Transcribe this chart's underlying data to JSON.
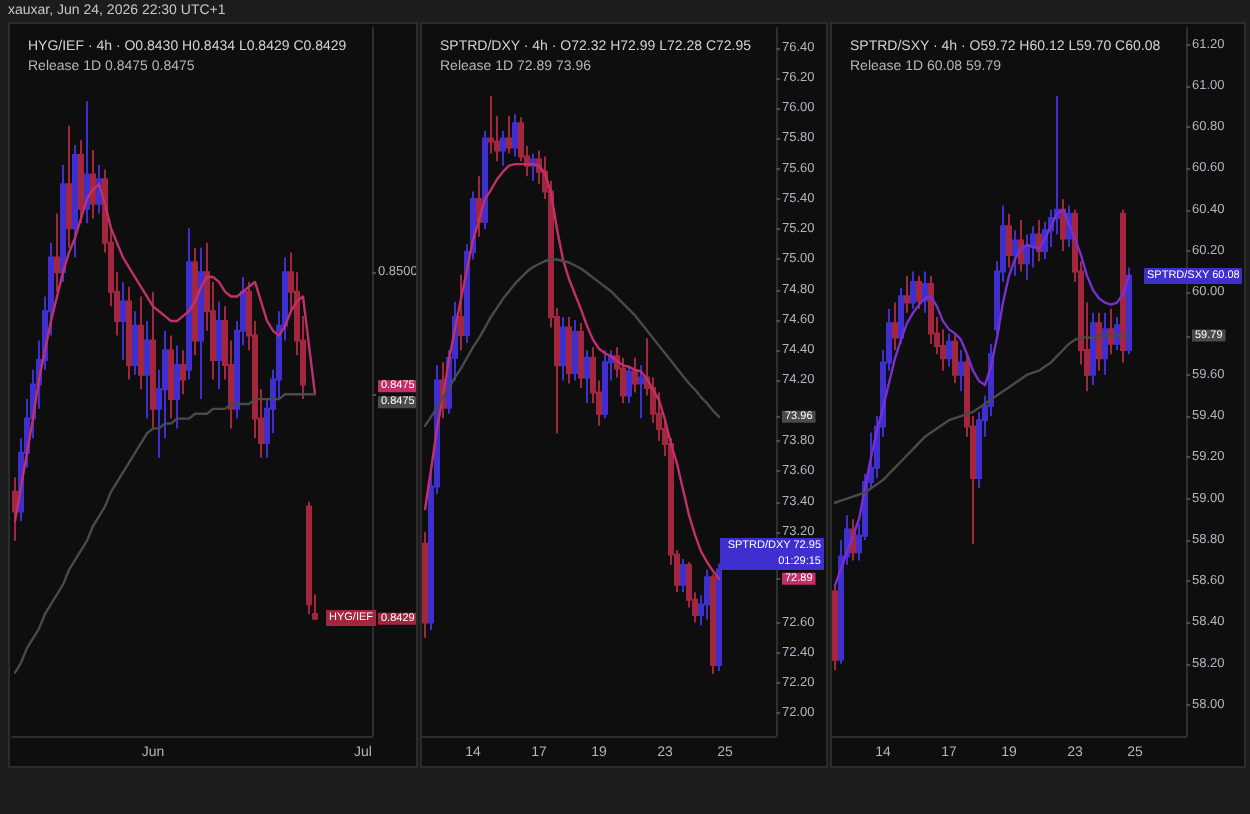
{
  "chart_data": [
    {
      "type": "candlestick",
      "title": "HYG/IEF · 4h · O0.8430 H0.8434 L0.8429 C0.8429",
      "subtitle": "Release 1D 0.8475 0.8475",
      "categories": [
        null,
        null,
        null,
        null,
        null,
        null,
        null,
        null,
        null,
        null,
        null,
        null,
        null,
        null,
        null,
        null,
        null,
        null,
        null,
        null,
        null,
        null,
        null,
        "Jun",
        null,
        null,
        null,
        null,
        null,
        null,
        null,
        null,
        null,
        null,
        null,
        null,
        null,
        null,
        null,
        null,
        null,
        null,
        null,
        null,
        null,
        null,
        null,
        null,
        null,
        null,
        null,
        null,
        null,
        null,
        null,
        null,
        null,
        null,
        "Jul",
        null
      ],
      "ohlc": [
        [
          0.8455,
          0.8458,
          0.8445,
          0.8451
        ],
        [
          0.8451,
          0.8466,
          0.8449,
          0.8463
        ],
        [
          0.8463,
          0.8474,
          0.846,
          0.847
        ],
        [
          0.847,
          0.848,
          0.8466,
          0.8477
        ],
        [
          0.8477,
          0.8486,
          0.8472,
          0.8482
        ],
        [
          0.8482,
          0.8495,
          0.848,
          0.8492
        ],
        [
          0.8492,
          0.8506,
          0.8487,
          0.8503
        ],
        [
          0.8503,
          0.8512,
          0.8496,
          0.85
        ],
        [
          0.85,
          0.8522,
          0.8498,
          0.8518
        ],
        [
          0.8518,
          0.853,
          0.8505,
          0.8509
        ],
        [
          0.8509,
          0.8526,
          0.8503,
          0.8524
        ],
        [
          0.8524,
          0.8527,
          0.851,
          0.8513
        ],
        [
          0.8513,
          0.8535,
          0.851,
          0.852
        ],
        [
          0.852,
          0.8525,
          0.8511,
          0.8514
        ],
        [
          0.8514,
          0.8522,
          0.8512,
          0.8519
        ],
        [
          0.8519,
          0.8521,
          0.8504,
          0.8506
        ],
        [
          0.8506,
          0.8509,
          0.8493,
          0.8496
        ],
        [
          0.8496,
          0.85,
          0.8487,
          0.849
        ],
        [
          0.849,
          0.8498,
          0.8482,
          0.8494
        ],
        [
          0.8494,
          0.8497,
          0.8478,
          0.8481
        ],
        [
          0.8481,
          0.8492,
          0.8479,
          0.8489
        ],
        [
          0.8489,
          0.8495,
          0.8476,
          0.8479
        ],
        [
          0.8479,
          0.849,
          0.847,
          0.8486
        ],
        [
          0.8486,
          0.8496,
          0.8468,
          0.8472
        ],
        [
          0.8472,
          0.848,
          0.8462,
          0.8476
        ],
        [
          0.8476,
          0.8488,
          0.8466,
          0.8484
        ],
        [
          0.8484,
          0.8487,
          0.847,
          0.8474
        ],
        [
          0.8474,
          0.8485,
          0.8468,
          0.8481
        ],
        [
          0.8481,
          0.8484,
          0.8475,
          0.8478
        ],
        [
          0.848,
          0.8509,
          0.8478,
          0.8502
        ],
        [
          0.8502,
          0.8505,
          0.8483,
          0.8486
        ],
        [
          0.8486,
          0.8505,
          0.8474,
          0.85
        ],
        [
          0.85,
          0.8506,
          0.8488,
          0.8492
        ],
        [
          0.8492,
          0.8498,
          0.8478,
          0.8482
        ],
        [
          0.8482,
          0.8494,
          0.8476,
          0.849
        ],
        [
          0.849,
          0.8493,
          0.8478,
          0.8481
        ],
        [
          0.8481,
          0.8486,
          0.8468,
          0.8472
        ],
        [
          0.8472,
          0.849,
          0.847,
          0.8488
        ],
        [
          0.8488,
          0.8499,
          0.8485,
          0.8496
        ],
        [
          0.8496,
          0.8498,
          0.8484,
          0.8487
        ],
        [
          0.8487,
          0.849,
          0.8466,
          0.847
        ],
        [
          0.847,
          0.8476,
          0.8462,
          0.8465
        ],
        [
          0.8465,
          0.8474,
          0.8462,
          0.8472
        ],
        [
          0.8472,
          0.848,
          0.8467,
          0.8478
        ],
        [
          0.8478,
          0.8492,
          0.8474,
          0.8489
        ],
        [
          0.8489,
          0.8503,
          0.8486,
          0.85
        ],
        [
          0.85,
          0.8504,
          0.8492,
          0.8496
        ],
        [
          0.8496,
          0.85,
          0.8483,
          0.8486
        ],
        [
          0.8486,
          0.8491,
          0.8474,
          0.8477
        ],
        [
          0.8452,
          0.8453,
          0.843,
          0.8432
        ],
        [
          0.843,
          0.8434,
          0.8429,
          0.8429
        ],
        null,
        null,
        null,
        null,
        null,
        null,
        null,
        null,
        null
      ],
      "colors": [
        "#a3263f",
        "#3f2fcf",
        "#3f2fcf",
        "#3f2fcf",
        "#3f2fcf",
        "#3f2fcf",
        "#3f2fcf",
        "#a3263f",
        "#3f2fcf",
        "#a3263f",
        "#3f2fcf",
        "#a3263f",
        "#3f2fcf",
        "#a3263f",
        "#3f2fcf",
        "#a3263f",
        "#a3263f",
        "#a3263f",
        "#3f2fcf",
        "#a3263f",
        "#3f2fcf",
        "#a3263f",
        "#3f2fcf",
        "#a3263f",
        "#3f2fcf",
        "#3f2fcf",
        "#a3263f",
        "#3f2fcf",
        "#a3263f",
        "#3f2fcf",
        "#a3263f",
        "#3f2fcf",
        "#a3263f",
        "#a3263f",
        "#3f2fcf",
        "#a3263f",
        "#a3263f",
        "#3f2fcf",
        "#3f2fcf",
        "#a3263f",
        "#a3263f",
        "#a3263f",
        "#3f2fcf",
        "#3f2fcf",
        "#3f2fcf",
        "#3f2fcf",
        "#a3263f",
        "#a3263f",
        "#a3263f",
        "#a3263f",
        "#a3263f",
        null,
        null,
        null,
        null,
        null,
        null,
        null,
        null,
        null
      ],
      "value_labels": [
        null,
        null,
        null,
        null,
        null,
        null,
        null,
        null,
        null,
        null,
        null,
        null,
        null,
        null,
        null,
        null,
        null,
        null,
        null,
        null,
        null,
        null,
        null,
        null,
        null,
        null,
        null,
        null,
        null,
        null,
        null,
        null,
        null,
        null,
        null,
        null,
        null,
        null,
        null,
        null,
        null,
        null,
        null,
        null,
        null,
        null,
        null,
        null,
        null,
        null,
        "HYG/IEF",
        null,
        null,
        null,
        null,
        null,
        null,
        null,
        null,
        null
      ],
      "series": [
        {
          "type": "line",
          "color": "#c2306a",
          "values": [
            0.8449,
            0.8456,
            0.8463,
            0.847,
            0.8478,
            0.8484,
            0.849,
            0.8495,
            0.85,
            0.8504,
            0.8507,
            0.8511,
            0.8515,
            0.8517,
            0.8518,
            0.8514,
            0.8509,
            0.8506,
            0.8503,
            0.8501,
            0.8499,
            0.8497,
            0.8495,
            0.8493,
            0.8492,
            0.8491,
            0.849,
            0.849,
            0.8491,
            0.8492,
            0.8494,
            0.8497,
            0.8499,
            0.8499,
            0.8498,
            0.8496,
            0.8495,
            0.8495,
            0.8496,
            0.8497,
            0.8498,
            0.8494,
            0.849,
            0.8488,
            0.8487,
            0.8489,
            0.8492,
            0.8494,
            0.8495,
            0.8485,
            0.8475,
            null,
            null,
            null,
            null,
            null,
            null,
            null,
            null,
            null
          ]
        },
        {
          "type": "line",
          "color": "#4a4a4a",
          "values": [
            0.8418,
            0.842,
            0.8423,
            0.8425,
            0.8427,
            0.843,
            0.8432,
            0.8434,
            0.8436,
            0.8439,
            0.8441,
            0.8443,
            0.8445,
            0.8448,
            0.845,
            0.8452,
            0.8455,
            0.8457,
            0.8459,
            0.8461,
            0.8463,
            0.8465,
            0.8467,
            0.8468,
            0.8468,
            0.8469,
            0.8469,
            0.847,
            0.847,
            0.847,
            0.8471,
            0.8471,
            0.8471,
            0.8472,
            0.8472,
            0.8472,
            0.8473,
            0.8473,
            0.8473,
            0.8473,
            0.8474,
            0.8474,
            0.8474,
            0.8474,
            0.8474,
            0.8475,
            0.8475,
            0.8475,
            0.8475,
            0.8475,
            0.8475,
            null,
            null,
            null,
            null,
            null,
            null,
            null,
            null,
            null
          ]
        }
      ],
      "ylim": [
        0.8405,
        0.855
      ],
      "yticks": [
        0.8429,
        {
          "value": 0.8475,
          "label": "0.8475\n0.8475"
        },
        {
          "value": 0.85,
          "label": "0.8500"
        }
      ],
      "annotations": [
        "xauxar, Jun 24, 2026 22:30 UTC+1"
      ]
    },
    {
      "type": "candlestick",
      "title": "SPTRD/DXY · 4h · O72.32 H72.99 L72.28 C72.95",
      "subtitle": "Release 1D 72.89 73.96",
      "categories": [
        null,
        null,
        null,
        null,
        null,
        null,
        null,
        null,
        "14",
        null,
        null,
        null,
        null,
        null,
        null,
        null,
        null,
        null,
        null,
        "17",
        null,
        null,
        null,
        null,
        null,
        null,
        null,
        null,
        null,
        "19",
        null,
        null,
        null,
        null,
        null,
        null,
        null,
        null,
        null,
        null,
        "23",
        null,
        null,
        null,
        null,
        null,
        null,
        null,
        null,
        null,
        "25",
        null,
        null,
        null,
        null,
        null,
        null,
        null,
        null
      ],
      "ohlc": [
        [
          73.12,
          73.2,
          72.5,
          72.6
        ],
        [
          72.6,
          73.6,
          72.55,
          73.5
        ],
        [
          73.5,
          74.3,
          73.45,
          74.2
        ],
        [
          74.2,
          74.32,
          73.95,
          74.02
        ],
        [
          74.02,
          74.4,
          73.98,
          74.35
        ],
        [
          74.35,
          74.72,
          74.2,
          74.62
        ],
        [
          74.62,
          74.9,
          74.4,
          74.5
        ],
        [
          74.5,
          75.1,
          74.45,
          75.05
        ],
        [
          75.05,
          75.45,
          75.0,
          75.4
        ],
        [
          75.4,
          75.55,
          75.15,
          75.25
        ],
        [
          75.25,
          75.85,
          75.2,
          75.8
        ],
        [
          75.8,
          76.08,
          75.7,
          75.78
        ],
        [
          75.78,
          75.95,
          75.65,
          75.72
        ],
        [
          75.72,
          75.85,
          75.62,
          75.8
        ],
        [
          75.8,
          75.95,
          75.7,
          75.74
        ],
        [
          75.74,
          75.96,
          75.68,
          75.9
        ],
        [
          75.9,
          75.94,
          75.65,
          75.68
        ],
        [
          75.68,
          75.75,
          75.55,
          75.62
        ],
        [
          75.62,
          75.7,
          75.52,
          75.66
        ],
        [
          75.66,
          75.72,
          75.5,
          75.58
        ],
        [
          75.58,
          75.68,
          75.4,
          75.45
        ],
        [
          75.45,
          75.52,
          74.55,
          74.62
        ],
        [
          74.62,
          74.68,
          73.85,
          74.3
        ],
        [
          74.3,
          74.62,
          74.2,
          74.55
        ],
        [
          74.55,
          74.62,
          74.18,
          74.25
        ],
        [
          74.25,
          74.6,
          74.2,
          74.52
        ],
        [
          74.52,
          74.58,
          74.15,
          74.22
        ],
        [
          74.22,
          74.4,
          74.05,
          74.35
        ],
        [
          74.35,
          74.42,
          74.05,
          74.12
        ],
        [
          74.12,
          74.2,
          73.9,
          73.98
        ],
        [
          73.98,
          74.4,
          73.95,
          74.32
        ],
        [
          74.32,
          74.4,
          74.2,
          74.36
        ],
        [
          74.36,
          74.42,
          74.22,
          74.28
        ],
        [
          74.28,
          74.35,
          74.05,
          74.1
        ],
        [
          74.1,
          74.3,
          74.05,
          74.26
        ],
        [
          74.26,
          74.35,
          74.12,
          74.18
        ],
        [
          74.18,
          74.3,
          73.95,
          74.22
        ],
        [
          74.22,
          74.48,
          74.1,
          74.15
        ],
        [
          74.15,
          74.22,
          73.92,
          73.98
        ],
        [
          73.98,
          74.12,
          73.8,
          73.88
        ],
        [
          73.88,
          73.95,
          73.7,
          73.78
        ],
        [
          73.78,
          73.82,
          72.98,
          73.05
        ],
        [
          73.05,
          73.08,
          72.8,
          72.85
        ],
        [
          72.85,
          73.02,
          72.8,
          72.98
        ],
        [
          72.98,
          73.0,
          72.7,
          72.75
        ],
        [
          72.75,
          72.8,
          72.6,
          72.65
        ],
        [
          72.65,
          72.78,
          72.58,
          72.72
        ],
        [
          72.72,
          72.95,
          72.62,
          72.9
        ],
        [
          72.9,
          72.92,
          72.26,
          72.32
        ],
        [
          72.32,
          72.99,
          72.28,
          72.95
        ],
        null,
        null,
        null,
        null,
        null,
        null,
        null,
        null,
        null
      ],
      "colors": [
        "#a3263f",
        "#3f2fcf",
        "#3f2fcf",
        "#a3263f",
        "#3f2fcf",
        "#3f2fcf",
        "#a3263f",
        "#3f2fcf",
        "#3f2fcf",
        "#a3263f",
        "#3f2fcf",
        "#a3263f",
        "#a3263f",
        "#3f2fcf",
        "#a3263f",
        "#3f2fcf",
        "#a3263f",
        "#a3263f",
        "#3f2fcf",
        "#a3263f",
        "#a3263f",
        "#a3263f",
        "#a3263f",
        "#3f2fcf",
        "#a3263f",
        "#3f2fcf",
        "#a3263f",
        "#3f2fcf",
        "#a3263f",
        "#a3263f",
        "#3f2fcf",
        "#3f2fcf",
        "#a3263f",
        "#a3263f",
        "#3f2fcf",
        "#a3263f",
        "#3f2fcf",
        "#a3263f",
        "#a3263f",
        "#a3263f",
        "#a3263f",
        "#a3263f",
        "#a3263f",
        "#3f2fcf",
        "#a3263f",
        "#a3263f",
        "#3f2fcf",
        "#3f2fcf",
        "#a3263f",
        "#3f2fcf",
        null,
        null,
        null,
        null,
        null,
        null,
        null,
        null,
        null
      ],
      "value_labels": [
        null,
        null,
        null,
        null,
        null,
        null,
        null,
        null,
        null,
        null,
        null,
        null,
        null,
        null,
        null,
        null,
        null,
        null,
        null,
        null,
        null,
        null,
        null,
        null,
        null,
        null,
        null,
        null,
        null,
        null,
        null,
        null,
        null,
        null,
        null,
        null,
        null,
        null,
        null,
        null,
        null,
        null,
        null,
        null,
        null,
        null,
        null,
        null,
        null,
        "SPTRD/DXY 72.95 01:29:15",
        null,
        null,
        null,
        null,
        null,
        null,
        null,
        null,
        null
      ],
      "series": [
        {
          "type": "line",
          "color": "#c2306a",
          "values": [
            73.35,
            73.61,
            73.88,
            74.1,
            74.34,
            74.54,
            74.74,
            74.93,
            75.13,
            75.26,
            75.4,
            75.46,
            75.53,
            75.58,
            75.62,
            75.63,
            75.63,
            75.63,
            75.63,
            75.62,
            75.57,
            75.44,
            75.2,
            75.0,
            74.87,
            74.77,
            74.67,
            74.56,
            74.47,
            74.41,
            74.38,
            74.36,
            74.33,
            74.3,
            74.29,
            74.27,
            74.26,
            74.21,
            74.14,
            74.07,
            73.94,
            73.78,
            73.65,
            73.48,
            73.31,
            73.18,
            73.07,
            73.0,
            72.94,
            72.89,
            null,
            null,
            null,
            null,
            null,
            null,
            null,
            null,
            null
          ]
        },
        {
          "type": "line",
          "color": "#4a4a4a",
          "values": [
            73.9,
            73.96,
            74.02,
            74.09,
            74.15,
            74.22,
            74.28,
            74.35,
            74.42,
            74.48,
            74.55,
            74.62,
            74.68,
            74.74,
            74.79,
            74.84,
            74.88,
            74.92,
            74.95,
            74.97,
            74.99,
            75.0,
            75.0,
            74.99,
            74.98,
            74.96,
            74.94,
            74.91,
            74.88,
            74.85,
            74.82,
            74.79,
            74.75,
            74.71,
            74.67,
            74.63,
            74.58,
            74.53,
            74.48,
            74.43,
            74.38,
            74.33,
            74.28,
            74.23,
            74.18,
            74.14,
            74.09,
            74.05,
            74.0,
            73.96,
            null,
            null,
            null,
            null,
            null,
            null,
            null,
            null,
            null
          ]
        }
      ],
      "ylim": [
        71.85,
        76.53
      ],
      "yticks": [
        {
          "value": 72,
          "label": "72.00"
        },
        {
          "value": 72.2,
          "label": "72.20"
        },
        {
          "value": 72.4,
          "label": "72.40"
        },
        {
          "value": 72.6,
          "label": "72.60"
        },
        72.89,
        {
          "value": 73.2,
          "label": "73.20"
        },
        {
          "value": 73.4,
          "label": "73.40"
        },
        {
          "value": 73.6,
          "label": "73.60"
        },
        {
          "value": 73.8,
          "label": "73.80"
        },
        73.96,
        {
          "value": 74.2,
          "label": "74.20"
        },
        {
          "value": 74.4,
          "label": "74.40"
        },
        {
          "value": 74.6,
          "label": "74.60"
        },
        {
          "value": 74.8,
          "label": "74.80"
        },
        {
          "value": 75,
          "label": "75.00"
        },
        {
          "value": 75.2,
          "label": "75.20"
        },
        {
          "value": 75.4,
          "label": "75.40"
        },
        {
          "value": 75.6,
          "label": "75.60"
        },
        {
          "value": 75.8,
          "label": "75.80"
        },
        {
          "value": 76,
          "label": "76.00"
        },
        {
          "value": 76.2,
          "label": "76.20"
        },
        {
          "value": 76.4,
          "label": "76.40"
        }
      ]
    },
    {
      "type": "candlestick",
      "title": "SPTRD/SXY · 4h · O59.72 H60.12 L59.70 C60.08",
      "subtitle": "Release 1D 60.08 59.79",
      "categories": [
        null,
        null,
        null,
        null,
        null,
        null,
        null,
        null,
        "14",
        null,
        null,
        null,
        null,
        null,
        null,
        null,
        null,
        null,
        null,
        "17",
        null,
        null,
        null,
        null,
        null,
        null,
        null,
        null,
        null,
        "19",
        null,
        null,
        null,
        null,
        null,
        null,
        null,
        null,
        null,
        null,
        "23",
        null,
        null,
        null,
        null,
        null,
        null,
        null,
        null,
        null,
        "25",
        null,
        null,
        null,
        null,
        null,
        null,
        null,
        null
      ],
      "ohlc": [
        [
          58.55,
          58.58,
          58.17,
          58.22
        ],
        [
          58.22,
          58.8,
          58.2,
          58.72
        ],
        [
          58.72,
          58.92,
          58.68,
          58.85
        ],
        [
          58.85,
          58.9,
          58.7,
          58.74
        ],
        [
          58.74,
          58.88,
          58.7,
          58.82
        ],
        [
          58.82,
          59.12,
          58.8,
          59.08
        ],
        [
          59.08,
          59.32,
          59.05,
          59.15
        ],
        [
          59.15,
          59.4,
          59.1,
          59.35
        ],
        [
          59.35,
          59.72,
          59.3,
          59.66
        ],
        [
          59.66,
          59.92,
          59.62,
          59.85
        ],
        [
          59.85,
          59.95,
          59.72,
          59.78
        ],
        [
          59.78,
          60.02,
          59.75,
          59.98
        ],
        [
          59.98,
          60.08,
          59.9,
          59.95
        ],
        [
          59.95,
          60.1,
          59.92,
          60.05
        ],
        [
          60.05,
          60.08,
          59.92,
          59.96
        ],
        [
          59.96,
          60.1,
          59.9,
          60.04
        ],
        [
          60.04,
          60.08,
          59.75,
          59.8
        ],
        [
          59.8,
          59.88,
          59.7,
          59.74
        ],
        [
          59.74,
          59.82,
          59.62,
          59.68
        ],
        [
          59.68,
          59.8,
          59.64,
          59.76
        ],
        [
          59.76,
          59.8,
          59.56,
          59.6
        ],
        [
          59.6,
          59.72,
          59.52,
          59.66
        ],
        [
          59.66,
          59.7,
          59.3,
          59.35
        ],
        [
          59.35,
          59.4,
          58.78,
          59.1
        ],
        [
          59.1,
          59.42,
          59.05,
          59.38
        ],
        [
          59.38,
          59.5,
          59.3,
          59.45
        ],
        [
          59.45,
          59.75,
          59.4,
          59.7
        ],
        [
          59.82,
          60.15,
          59.8,
          60.1
        ],
        [
          60.1,
          60.42,
          60.05,
          60.32
        ],
        [
          60.32,
          60.38,
          60.12,
          60.18
        ],
        [
          60.18,
          60.3,
          60.08,
          60.25
        ],
        [
          60.25,
          60.35,
          60.1,
          60.14
        ],
        [
          60.14,
          60.28,
          60.06,
          60.22
        ],
        [
          60.22,
          60.32,
          60.12,
          60.28
        ],
        [
          60.28,
          60.35,
          60.15,
          60.2
        ],
        [
          60.2,
          60.34,
          60.16,
          60.3
        ],
        [
          60.3,
          60.4,
          60.22,
          60.36
        ],
        [
          60.36,
          60.95,
          60.28,
          60.4
        ],
        [
          60.4,
          60.45,
          60.2,
          60.26
        ],
        [
          60.26,
          60.42,
          60.22,
          60.38
        ],
        [
          60.38,
          60.4,
          60.05,
          60.1
        ],
        [
          60.1,
          60.15,
          59.65,
          59.72
        ],
        [
          59.72,
          59.95,
          59.52,
          59.6
        ],
        [
          59.6,
          59.9,
          59.55,
          59.85
        ],
        [
          59.85,
          59.9,
          59.62,
          59.68
        ],
        [
          59.68,
          59.9,
          59.6,
          59.82
        ],
        [
          59.82,
          59.92,
          59.7,
          59.75
        ],
        [
          59.75,
          59.88,
          59.72,
          59.84
        ],
        [
          60.38,
          60.4,
          59.66,
          59.72
        ],
        [
          59.72,
          60.12,
          59.7,
          60.08
        ],
        null,
        null,
        null,
        null,
        null,
        null,
        null,
        null,
        null
      ],
      "colors": [
        "#a3263f",
        "#3f2fcf",
        "#3f2fcf",
        "#a3263f",
        "#3f2fcf",
        "#3f2fcf",
        "#3f2fcf",
        "#3f2fcf",
        "#3f2fcf",
        "#3f2fcf",
        "#a3263f",
        "#3f2fcf",
        "#a3263f",
        "#3f2fcf",
        "#a3263f",
        "#3f2fcf",
        "#a3263f",
        "#a3263f",
        "#a3263f",
        "#3f2fcf",
        "#a3263f",
        "#3f2fcf",
        "#a3263f",
        "#a3263f",
        "#3f2fcf",
        "#3f2fcf",
        "#3f2fcf",
        "#3f2fcf",
        "#3f2fcf",
        "#a3263f",
        "#3f2fcf",
        "#a3263f",
        "#3f2fcf",
        "#3f2fcf",
        "#a3263f",
        "#3f2fcf",
        "#3f2fcf",
        "#3f2fcf",
        "#a3263f",
        "#3f2fcf",
        "#a3263f",
        "#a3263f",
        "#a3263f",
        "#3f2fcf",
        "#a3263f",
        "#3f2fcf",
        "#a3263f",
        "#3f2fcf",
        "#a3263f",
        "#3f2fcf",
        null,
        null,
        null,
        null,
        null,
        null,
        null,
        null,
        null
      ],
      "value_labels": [
        null,
        null,
        null,
        null,
        null,
        null,
        null,
        null,
        null,
        null,
        null,
        null,
        null,
        null,
        null,
        null,
        null,
        null,
        null,
        null,
        null,
        null,
        null,
        null,
        null,
        null,
        null,
        null,
        null,
        null,
        null,
        null,
        null,
        null,
        null,
        null,
        null,
        null,
        null,
        null,
        null,
        null,
        null,
        null,
        null,
        null,
        null,
        null,
        null,
        "SPTRD/SXY 60.08",
        null,
        null,
        null,
        null,
        null,
        null,
        null,
        null,
        null
      ],
      "series": [
        {
          "type": "line",
          "color": "#7a2fd0",
          "values": [
            58.58,
            58.66,
            58.74,
            58.82,
            58.9,
            59.05,
            59.2,
            59.33,
            59.44,
            59.56,
            59.68,
            59.77,
            59.85,
            59.9,
            59.94,
            59.97,
            59.98,
            59.93,
            59.86,
            59.82,
            59.8,
            59.77,
            59.7,
            59.62,
            59.57,
            59.55,
            59.64,
            59.78,
            59.95,
            60.08,
            60.16,
            60.21,
            60.23,
            60.22,
            60.21,
            60.26,
            60.32,
            60.38,
            60.4,
            60.33,
            60.26,
            60.18,
            60.08,
            60.01,
            59.97,
            59.95,
            59.94,
            59.95,
            59.99,
            60.08,
            null,
            null,
            null,
            null,
            null,
            null,
            null,
            null,
            null
          ]
        },
        {
          "type": "line",
          "color": "#4a4a4a",
          "values": [
            58.98,
            58.99,
            59.0,
            59.01,
            59.02,
            59.03,
            59.05,
            59.07,
            59.09,
            59.12,
            59.15,
            59.18,
            59.21,
            59.24,
            59.27,
            59.3,
            59.32,
            59.34,
            59.36,
            59.38,
            59.39,
            59.4,
            59.41,
            59.42,
            59.44,
            59.46,
            59.48,
            59.5,
            59.52,
            59.54,
            59.56,
            59.58,
            59.6,
            59.61,
            59.62,
            59.64,
            59.66,
            59.69,
            59.72,
            59.75,
            59.77,
            59.78,
            59.78,
            59.78,
            59.79,
            59.79,
            59.79,
            59.79,
            59.79,
            59.79,
            null,
            null,
            null,
            null,
            null,
            null,
            null,
            null,
            null
          ]
        }
      ],
      "ylim": [
        57.85,
        61.28
      ],
      "yticks": [
        {
          "value": 58,
          "label": "58.00"
        },
        {
          "value": 58.2,
          "label": "58.20"
        },
        {
          "value": 58.4,
          "label": "58.40"
        },
        {
          "value": 58.6,
          "label": "58.60"
        },
        {
          "value": 58.8,
          "label": "58.80"
        },
        {
          "value": 59,
          "label": "59.00"
        },
        {
          "value": 59.2,
          "label": "59.20"
        },
        {
          "value": 59.4,
          "label": "59.40"
        },
        {
          "value": 59.6,
          "label": "59.60"
        },
        59.79,
        {
          "value": 60,
          "label": "60.00"
        },
        {
          "value": 60.2,
          "label": "60.20"
        },
        {
          "value": 60.4,
          "label": "60.40"
        },
        {
          "value": 60.6,
          "label": "60.60"
        },
        {
          "value": 60.8,
          "label": "60.80"
        },
        {
          "value": 61,
          "label": "61.00"
        },
        {
          "value": 61.2,
          "label": "61.20"
        }
      ]
    }
  ]
}
